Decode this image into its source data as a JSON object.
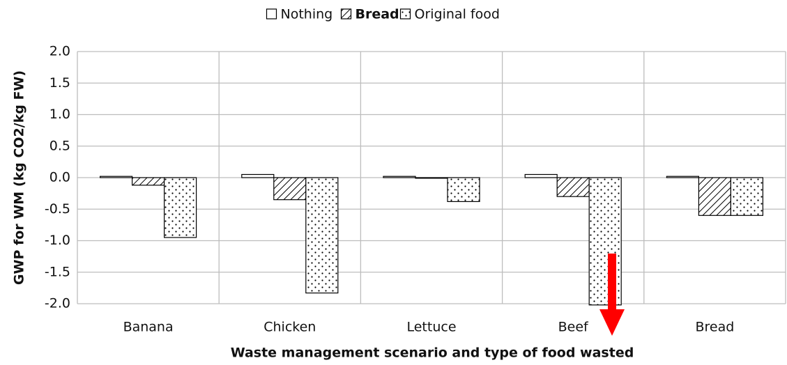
{
  "chart_data": {
    "type": "bar",
    "ylabel": "GWP for WM (kg CO2/kg FW)",
    "xlabel": "Waste management scenario and type of food wasted",
    "categories": [
      "Banana",
      "Chicken",
      "Lettuce",
      "Beef",
      "Bread"
    ],
    "series": [
      {
        "name": "Nothing",
        "color": "#ffffff",
        "pattern": "none",
        "font_weight": "normal",
        "values": [
          0.02,
          0.05,
          0.02,
          0.05,
          0.02
        ]
      },
      {
        "name": "Bread",
        "color": "#ffffff",
        "pattern": "hatch",
        "font_weight": "bold",
        "values": [
          -0.12,
          -0.35,
          -0.01,
          -0.3,
          -0.6
        ]
      },
      {
        "name": "Original food",
        "color": "#ffffff",
        "pattern": "dots",
        "font_weight": "normal",
        "values": [
          -0.95,
          -1.83,
          -0.38,
          -2.02,
          -0.6
        ]
      }
    ],
    "ylim": [
      -2,
      2
    ],
    "yticks": [
      {
        "value": 2,
        "label": "2.0"
      },
      1.5,
      {
        "value": 1,
        "label": "1.0"
      },
      0.5,
      {
        "value": 0,
        "label": "0.0"
      },
      -0.5,
      {
        "value": -1,
        "label": "-1.0"
      },
      -1.5,
      {
        "value": -2,
        "label": "-2.0"
      }
    ],
    "grid": true,
    "legend": "top"
  }
}
